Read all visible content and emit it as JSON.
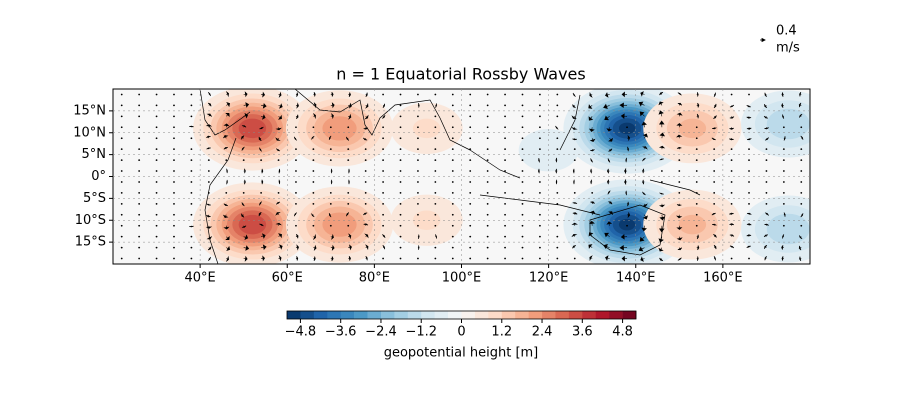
{
  "chart_data": {
    "type": "contour-map",
    "title": "n = 1 Equatorial Rossby Waves",
    "xlim": [
      20,
      180
    ],
    "ylim": [
      -20,
      20
    ],
    "xticks": [
      {
        "value": 40,
        "label": "40°E"
      },
      {
        "value": 60,
        "label": "60°E"
      },
      {
        "value": 80,
        "label": "80°E"
      },
      {
        "value": 100,
        "label": "100°E"
      },
      {
        "value": 120,
        "label": "120°E"
      },
      {
        "value": 140,
        "label": "140°E"
      },
      {
        "value": 160,
        "label": "160°E"
      }
    ],
    "yticks": [
      {
        "value": 15,
        "label": "15°N"
      },
      {
        "value": 10,
        "label": "10°N"
      },
      {
        "value": 5,
        "label": "5°N"
      },
      {
        "value": 0,
        "label": "0°"
      },
      {
        "value": -5,
        "label": "5°S"
      },
      {
        "value": -10,
        "label": "10°S"
      },
      {
        "value": -15,
        "label": "15°S"
      }
    ],
    "anomalies": {
      "lon": [
        52,
        52,
        72,
        72,
        92,
        92,
        120,
        138,
        138,
        153,
        153,
        175,
        175
      ],
      "lat": [
        11,
        -11,
        11,
        -11,
        11,
        -10,
        6,
        11,
        -11,
        11,
        -11,
        12,
        -12
      ],
      "values": [
        3.6,
        3.6,
        2.4,
        2.4,
        0.9,
        0.9,
        -0.7,
        -5.0,
        -5.0,
        1.8,
        1.8,
        -1.6,
        -1.6
      ]
    },
    "colorbar": {
      "label": "geopotential height [m]",
      "clim": [
        -5.2,
        5.2
      ],
      "step": 0.4,
      "ticks": [
        {
          "value": -4.8,
          "label": "−4.8"
        },
        {
          "value": -3.6,
          "label": "−3.6"
        },
        {
          "value": -2.4,
          "label": "−2.4"
        },
        {
          "value": -1.2,
          "label": "−1.2"
        },
        0.0,
        1.2,
        2.4,
        3.6,
        4.8
      ],
      "colormap": [
        "#053061",
        "#2166ac",
        "#4393c3",
        "#92c5de",
        "#d1e5f0",
        "#f7f7f7",
        "#fddbc7",
        "#f4a582",
        "#d6604d",
        "#b2182b",
        "#67001f"
      ]
    },
    "quiver_key": {
      "value": 0.4,
      "unit": "m/s"
    }
  }
}
